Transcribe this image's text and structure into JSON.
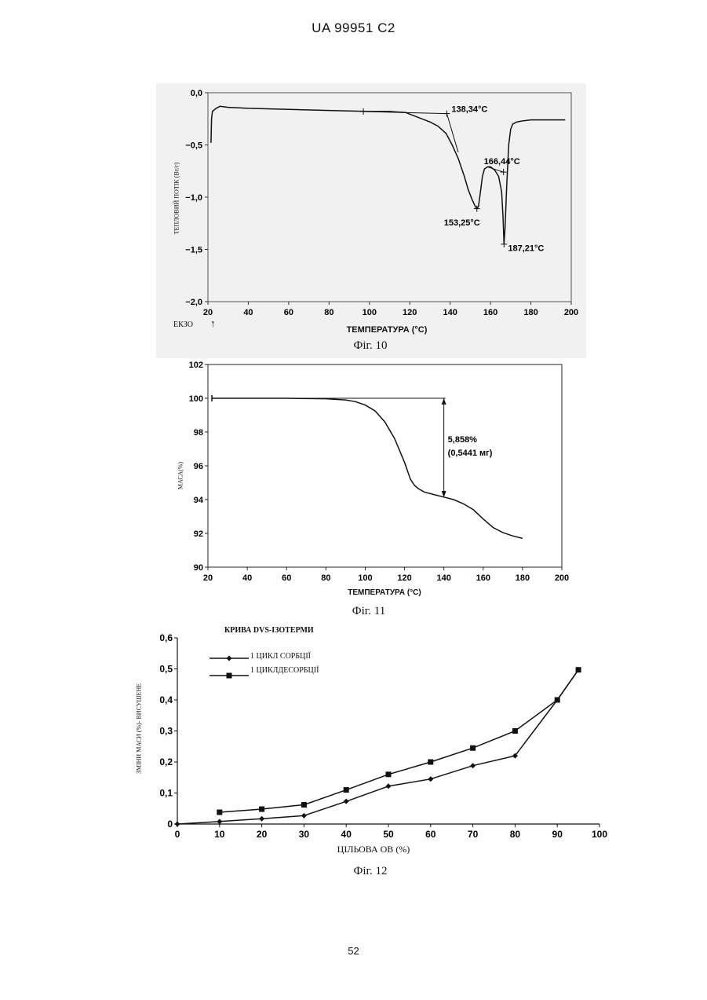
{
  "header": "UA   99951   C2",
  "page_number": "52",
  "chart_data": [
    {
      "type": "line",
      "caption": "Фіг. 10",
      "xlabel": "ТЕМПЕРАТУРА  (°C)",
      "ylabel": "ТЕПЛОВИЙ ПОТІК (Вт/г)",
      "exo_label": "ЕКЗО",
      "exo_arrow": "↑",
      "xlim": [
        20,
        200
      ],
      "ylim": [
        -2.0,
        0.0
      ],
      "xticks": [
        "20",
        "40",
        "60",
        "80",
        "100",
        "120",
        "140",
        "160",
        "180",
        "200"
      ],
      "yticks": [
        "0,0",
        "−0,5",
        "−1,0",
        "−1,5",
        "−2,0"
      ],
      "ytick_values": [
        0.0,
        -0.5,
        -1.0,
        -1.5,
        -2.0
      ],
      "annotations": [
        {
          "text": "138,34°C",
          "x": 138.34,
          "y": -0.2
        },
        {
          "text": "166,44°C",
          "x": 166.44,
          "y": -0.76
        },
        {
          "text": "153,25°C",
          "x": 153.25,
          "y": -1.12
        },
        {
          "text": "187,21°C",
          "x": 166.7,
          "y": -1.47
        }
      ],
      "series": [
        {
          "values": [
            [
              21.5,
              -0.48
            ],
            [
              21.8,
              -0.25
            ],
            [
              22.2,
              -0.18
            ],
            [
              24,
              -0.15
            ],
            [
              26,
              -0.13
            ],
            [
              30,
              -0.14
            ],
            [
              40,
              -0.15
            ],
            [
              60,
              -0.16
            ],
            [
              80,
              -0.17
            ],
            [
              100,
              -0.18
            ],
            [
              110,
              -0.18
            ],
            [
              118,
              -0.19
            ],
            [
              122,
              -0.22
            ],
            [
              126,
              -0.25
            ],
            [
              130,
              -0.28
            ],
            [
              134,
              -0.32
            ],
            [
              138,
              -0.39
            ],
            [
              141,
              -0.5
            ],
            [
              144,
              -0.63
            ],
            [
              147,
              -0.8
            ],
            [
              149,
              -0.93
            ],
            [
              151,
              -1.03
            ],
            [
              152.5,
              -1.09
            ],
            [
              153.25,
              -1.11
            ],
            [
              154,
              -1.09
            ],
            [
              155,
              -0.95
            ],
            [
              156,
              -0.8
            ],
            [
              157,
              -0.73
            ],
            [
              158.5,
              -0.71
            ],
            [
              160,
              -0.71
            ],
            [
              162,
              -0.74
            ],
            [
              164,
              -0.8
            ],
            [
              165.5,
              -0.95
            ],
            [
              166.2,
              -1.2
            ],
            [
              166.7,
              -1.45
            ],
            [
              167.2,
              -1.3
            ],
            [
              168,
              -0.9
            ],
            [
              169,
              -0.5
            ],
            [
              170,
              -0.35
            ],
            [
              171,
              -0.3
            ],
            [
              173,
              -0.28
            ],
            [
              176,
              -0.27
            ],
            [
              180,
              -0.26
            ],
            [
              190,
              -0.26
            ],
            [
              197,
              -0.26
            ]
          ]
        }
      ],
      "tangents": [
        [
          [
            97,
            -0.18
          ],
          [
            138.34,
            -0.2
          ]
        ],
        [
          [
            138.34,
            -0.2
          ],
          [
            144,
            -0.57
          ]
        ],
        [
          [
            158.5,
            -0.71
          ],
          [
            166.44,
            -0.76
          ]
        ]
      ]
    },
    {
      "type": "line",
      "caption": "Фіг. 11",
      "xlabel": "ТЕМПЕРАТУРА  (°C)",
      "ylabel": "МАСА(%)",
      "xlim": [
        20,
        200
      ],
      "ylim": [
        90,
        102
      ],
      "xticks": [
        "20",
        "40",
        "60",
        "80",
        "100",
        "120",
        "140",
        "160",
        "180",
        "200"
      ],
      "yticks": [
        "102",
        "100",
        "98",
        "96",
        "94",
        "92",
        "90"
      ],
      "ytick_values": [
        102,
        100,
        98,
        96,
        94,
        92,
        90
      ],
      "annotation": [
        "5,858%",
        "(0,5441 мг)"
      ],
      "series": [
        {
          "values": [
            [
              22,
              100
            ],
            [
              40,
              100
            ],
            [
              60,
              100
            ],
            [
              80,
              99.97
            ],
            [
              90,
              99.9
            ],
            [
              95,
              99.8
            ],
            [
              100,
              99.6
            ],
            [
              105,
              99.25
            ],
            [
              110,
              98.6
            ],
            [
              115,
              97.6
            ],
            [
              120,
              96.2
            ],
            [
              123,
              95.2
            ],
            [
              125,
              94.85
            ],
            [
              127,
              94.65
            ],
            [
              130,
              94.45
            ],
            [
              135,
              94.3
            ],
            [
              140,
              94.15
            ],
            [
              145,
              94
            ],
            [
              150,
              93.75
            ],
            [
              155,
              93.4
            ],
            [
              160,
              92.85
            ],
            [
              165,
              92.35
            ],
            [
              170,
              92.05
            ],
            [
              175,
              91.85
            ],
            [
              180,
              91.7
            ]
          ]
        }
      ],
      "drop": {
        "x": 140,
        "from": 100,
        "to": 94.14
      }
    },
    {
      "type": "line",
      "title": "КРИВА DVS-ІЗОТЕРМИ",
      "caption": "Фіг. 12",
      "xlabel": "ЦІЛЬОВА ОВ (%)",
      "ylabel": "ЗМІНИ МАСИ (%)- ВИСУШЕНЕ",
      "xlim": [
        0,
        100
      ],
      "ylim": [
        0,
        0.6
      ],
      "xticks": [
        "0",
        "10",
        "20",
        "30",
        "40",
        "50",
        "60",
        "70",
        "80",
        "90",
        "100"
      ],
      "yticks": [
        "0",
        "0,1",
        "0,2",
        "0,3",
        "0,4",
        "0,5",
        "0,6"
      ],
      "ytick_values": [
        0,
        0.1,
        0.2,
        0.3,
        0.4,
        0.5,
        0.6
      ],
      "x": [
        0,
        10,
        20,
        30,
        40,
        50,
        60,
        70,
        80,
        90,
        95
      ],
      "series": [
        {
          "name": "1 ЦИКЛ СОРБЦІЇ",
          "marker": "diamond",
          "values": [
            0,
            0.008,
            0.017,
            0.027,
            0.073,
            0.122,
            0.145,
            0.188,
            0.22,
            0.4,
            0.497
          ]
        },
        {
          "name": "1 ЦИКЛДЕСОРБЦІЇ",
          "marker": "square",
          "values": [
            null,
            0.038,
            0.048,
            0.062,
            0.11,
            0.16,
            0.2,
            0.245,
            0.3,
            0.4,
            0.497
          ]
        }
      ]
    }
  ]
}
